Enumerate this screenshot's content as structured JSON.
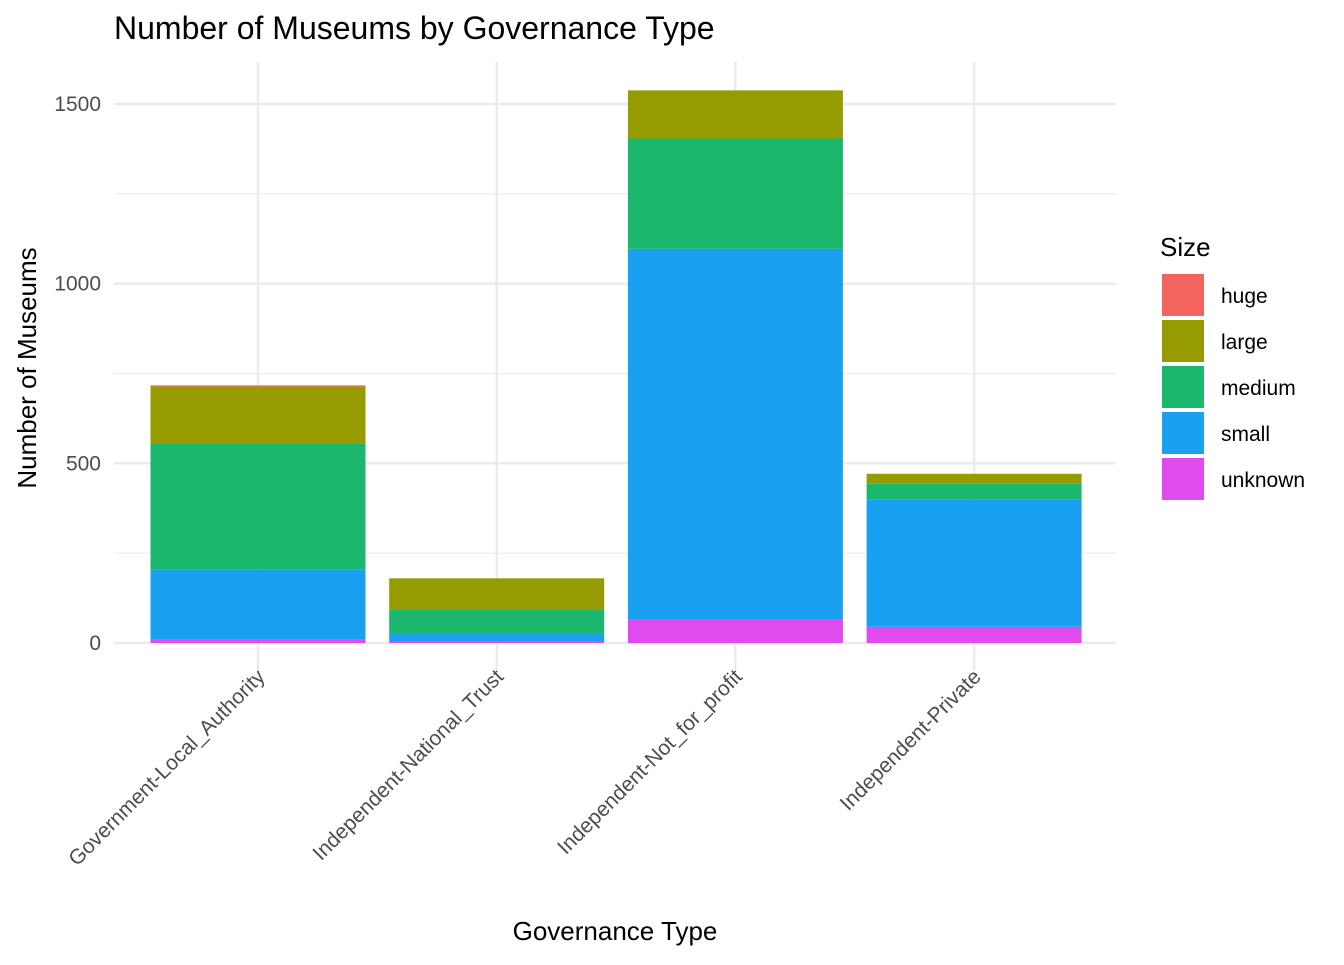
{
  "chart_data": {
    "type": "bar",
    "stacked": true,
    "title": "Number of Museums by Governance Type",
    "xlabel": "Governance Type",
    "ylabel": "Number of Museums",
    "ylim": [
      0,
      1600
    ],
    "yticks": [
      0,
      500,
      1000,
      1500
    ],
    "grid": true,
    "legend_title": "Size",
    "legend_position": "right",
    "categories": [
      "Government-Local_Authority",
      "Independent-National_Trust",
      "Independent-Not_for_profit",
      "Independent-Private"
    ],
    "series": [
      {
        "name": "unknown",
        "color": "#E04BF0",
        "values": [
          9,
          3,
          65,
          45
        ]
      },
      {
        "name": "small",
        "color": "#19A0F0",
        "values": [
          195,
          25,
          1032,
          355
        ]
      },
      {
        "name": "medium",
        "color": "#1BB76D",
        "values": [
          350,
          64,
          307,
          43
        ]
      },
      {
        "name": "large",
        "color": "#969B00",
        "values": [
          160,
          88,
          134,
          28
        ]
      },
      {
        "name": "huge",
        "color": "#F3645F",
        "values": [
          3,
          0,
          0,
          0
        ]
      }
    ],
    "legend_order": [
      "huge",
      "large",
      "medium",
      "small",
      "unknown"
    ]
  }
}
